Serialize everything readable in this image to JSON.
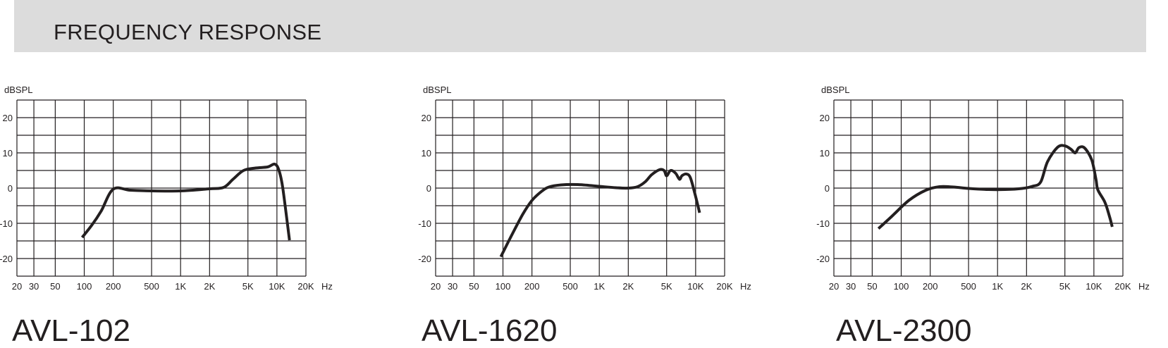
{
  "header": {
    "title": "FREQUENCY RESPONSE"
  },
  "chart_data": [
    {
      "type": "line",
      "model": "AVL-102",
      "ylabel": "dBSPL",
      "xunit": "Hz",
      "xscale": "log",
      "xlim": [
        20,
        20000
      ],
      "ylim": [
        -25,
        25
      ],
      "grid": true,
      "x_ticks": [
        20,
        30,
        50,
        100,
        200,
        500,
        1000,
        2000,
        5000,
        10000,
        20000
      ],
      "x_tick_labels": [
        "20",
        "30",
        "50",
        "100",
        "200",
        "500",
        "1K",
        "2K",
        "5K",
        "10K",
        "20K"
      ],
      "y_ticks": [
        20,
        10,
        0,
        -10,
        -20
      ],
      "y_tick_labels": [
        "20",
        "10",
        "0",
        "-10",
        "-20"
      ],
      "series": [
        {
          "x": [
            95,
            120,
            150,
            200,
            300,
            500,
            1000,
            2000,
            2800,
            3500,
            4500,
            6000,
            8000,
            9500,
            10500,
            11500,
            13500
          ],
          "y": [
            -14,
            -10.5,
            -6.5,
            -0.3,
            -0.6,
            -0.8,
            -0.8,
            -0.2,
            0.2,
            2.5,
            5,
            5.7,
            6,
            6.8,
            5,
            0,
            -14.8
          ]
        }
      ]
    },
    {
      "type": "line",
      "model": "AVL-1620",
      "ylabel": "dBSPL",
      "xunit": "Hz",
      "xscale": "log",
      "xlim": [
        20,
        20000
      ],
      "ylim": [
        -25,
        25
      ],
      "grid": true,
      "x_ticks": [
        20,
        30,
        50,
        100,
        200,
        500,
        1000,
        2000,
        5000,
        10000,
        20000
      ],
      "x_tick_labels": [
        "20",
        "30",
        "50",
        "100",
        "200",
        "500",
        "1K",
        "2K",
        "5K",
        "10K",
        "20K"
      ],
      "y_ticks": [
        20,
        10,
        0,
        -10,
        -20
      ],
      "y_tick_labels": [
        "20",
        "10",
        "0",
        "-10",
        "-20"
      ],
      "series": [
        {
          "x": [
            95,
            120,
            160,
            200,
            250,
            300,
            400,
            600,
            1000,
            1500,
            2000,
            2500,
            3000,
            3500,
            4200,
            4700,
            5000,
            5500,
            6200,
            6800,
            7200,
            8000,
            8800,
            9800,
            11000
          ],
          "y": [
            -19.5,
            -14,
            -7.5,
            -3.5,
            -1,
            0.3,
            0.9,
            1,
            0.5,
            0.1,
            0,
            0.4,
            1.8,
            3.8,
            5.2,
            5,
            3.5,
            5,
            4.2,
            2.5,
            3.5,
            4,
            3,
            -1.5,
            -7
          ]
        }
      ]
    },
    {
      "type": "line",
      "model": "AVL-2300",
      "ylabel": "dBSPL",
      "xunit": "Hz",
      "xscale": "log",
      "xlim": [
        20,
        20000
      ],
      "ylim": [
        -25,
        25
      ],
      "grid": true,
      "x_ticks": [
        20,
        30,
        50,
        100,
        200,
        500,
        1000,
        2000,
        5000,
        10000,
        20000
      ],
      "x_tick_labels": [
        "20",
        "30",
        "50",
        "100",
        "200",
        "500",
        "1K",
        "2K",
        "5K",
        "10K",
        "20K"
      ],
      "y_ticks": [
        20,
        10,
        0,
        -10,
        -20
      ],
      "y_tick_labels": [
        "20",
        "10",
        "0",
        "-10",
        "-20"
      ],
      "series": [
        {
          "x": [
            58,
            80,
            120,
            180,
            250,
            350,
            500,
            800,
            1200,
            1800,
            2300,
            2800,
            3300,
            4200,
            5000,
            5800,
            6400,
            7000,
            8000,
            9500,
            10500,
            11000,
            13000,
            14500,
            15500
          ],
          "y": [
            -11.5,
            -8,
            -3.5,
            -0.6,
            0.4,
            0.3,
            -0.1,
            -0.4,
            -0.4,
            -0.1,
            0.5,
            1.7,
            7.5,
            11.6,
            12,
            11,
            10,
            11.5,
            11.4,
            8,
            2.5,
            -0.5,
            -4,
            -8,
            -11
          ]
        }
      ]
    }
  ]
}
